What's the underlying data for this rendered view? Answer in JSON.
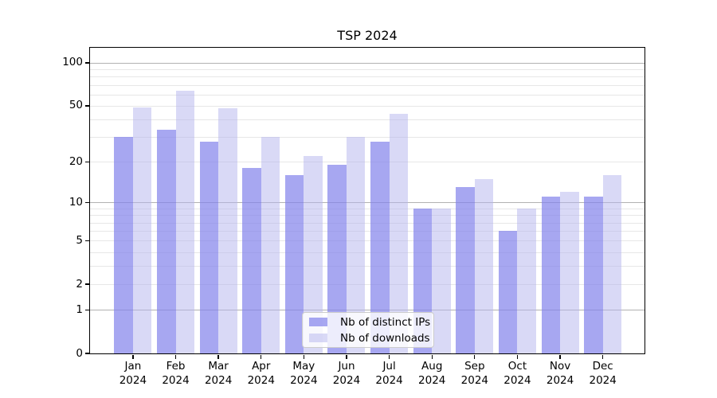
{
  "window": {
    "background": "#ffffff"
  },
  "chart_data": {
    "type": "bar",
    "title": "TSP 2024",
    "categories": [
      "Jan 2024",
      "Feb 2024",
      "Mar 2024",
      "Apr 2024",
      "May 2024",
      "Jun 2024",
      "Jul 2024",
      "Aug 2024",
      "Sep 2024",
      "Oct 2024",
      "Nov 2024",
      "Dec 2024"
    ],
    "x_tick_labels": [
      [
        "Jan",
        "2024"
      ],
      [
        "Feb",
        "2024"
      ],
      [
        "Mar",
        "2024"
      ],
      [
        "Apr",
        "2024"
      ],
      [
        "May",
        "2024"
      ],
      [
        "Jun",
        "2024"
      ],
      [
        "Jul",
        "2024"
      ],
      [
        "Aug",
        "2024"
      ],
      [
        "Sep",
        "2024"
      ],
      [
        "Oct",
        "2024"
      ],
      [
        "Nov",
        "2024"
      ],
      [
        "Dec",
        "2024"
      ]
    ],
    "series": [
      {
        "name": "Nb of distinct IPs",
        "color": "#a7a7ee",
        "fill": "rgba(130,130,235,0.7)",
        "values": [
          30,
          34,
          28,
          18,
          16,
          19,
          28,
          9,
          13,
          6,
          11,
          11
        ]
      },
      {
        "name": "Nb of downloads",
        "color": "#d9d9f6",
        "fill": "rgba(179,179,237,0.5)",
        "values": [
          49,
          64,
          48,
          30,
          22,
          30,
          44,
          9,
          15,
          9,
          12,
          16
        ]
      }
    ],
    "xlabel": "",
    "ylabel": "",
    "yscale": "log1p",
    "ylim": [
      0,
      129
    ],
    "yticks": [
      0,
      1,
      2,
      5,
      10,
      20,
      50,
      100
    ],
    "ytick_labels": [
      "0",
      "1",
      "2",
      "5",
      "10",
      "20",
      "50",
      "100"
    ],
    "major_gridlines": [
      1,
      10,
      100
    ],
    "minor_gridlines": [
      2,
      3,
      4,
      5,
      6,
      7,
      8,
      9,
      20,
      30,
      40,
      50,
      60,
      70,
      80,
      90
    ],
    "grid": true,
    "legend_position": "lower center inside plot"
  },
  "colors": {
    "major_grid": "#b2b2b2",
    "minor_grid": "#e7e7e7",
    "axis": "#000000",
    "legend_border": "#cccccc",
    "legend_background": "rgba(255,255,255,0.8)"
  }
}
